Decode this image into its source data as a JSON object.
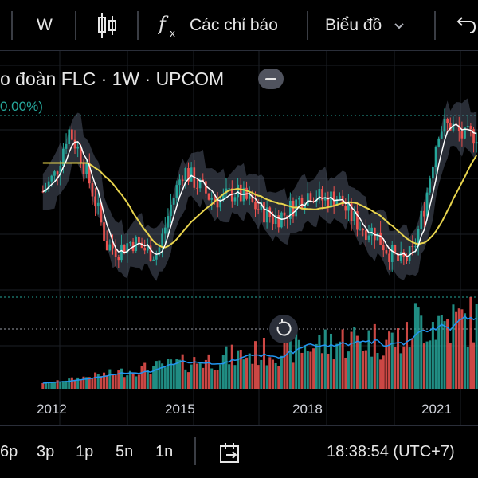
{
  "toolbar": {
    "interval": "W",
    "indicators_label": "Các chỉ báo",
    "chart_type_label": "Biểu đồ"
  },
  "legend": {
    "title": "o đoàn FLC · 1W · UPCOM",
    "change": "0.00%)"
  },
  "chart_data": {
    "type": "line",
    "title": "",
    "xlabel": "",
    "ylabel": "",
    "x_ticks": [
      "2012",
      "2015",
      "2018",
      "2021"
    ],
    "grid": true,
    "series": [
      {
        "values": [
          62,
          70,
          90,
          78,
          60,
          38,
          36,
          40,
          36,
          34,
          55,
          72,
          66,
          60,
          58,
          62,
          58,
          54,
          50,
          52,
          58,
          62,
          58,
          60,
          52,
          46,
          44,
          36,
          30,
          34,
          58,
          90,
          92,
          86,
          88
        ]
      }
    ],
    "colors": {
      "up": "#26a69a",
      "down": "#ef5350",
      "ma_yellow": "#e8d44d",
      "ma_white": "#ffffff",
      "volume_ma": "#2196f3"
    }
  },
  "bottom": {
    "ranges": [
      "6p",
      "3p",
      "1p",
      "5n",
      "1n"
    ],
    "clock": "18:38:54 (UTC+7)"
  }
}
